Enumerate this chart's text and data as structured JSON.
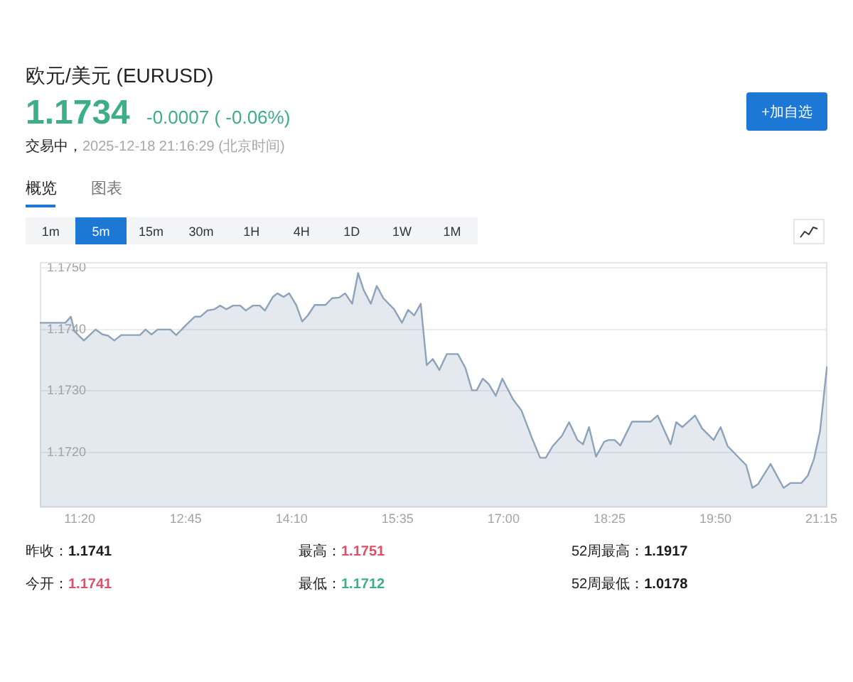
{
  "chart_data": {
    "type": "area",
    "title": "欧元/美元 (EURUSD)",
    "annotations": [
      "1.1734",
      "-0.0007 ( -0.06%)",
      "交易中，",
      "2025-12-18 21:16:29 (北京时间)",
      "+加自选",
      "概览",
      "图表",
      "1m",
      "5m",
      "15m",
      "30m",
      "1H",
      "4H",
      "1D",
      "1W",
      "1M",
      "昨收：",
      "1.1741",
      "最高：",
      "1.1751",
      "52周最高：",
      "1.1917",
      "今开：",
      "1.1741",
      "最低：",
      "1.1712",
      "52周最低：",
      "1.0178"
    ],
    "x": [
      10.8,
      11.141,
      11.215,
      11.264,
      11.389,
      11.545,
      11.638,
      11.713,
      11.795,
      11.889,
      12.138,
      12.213,
      12.293,
      12.375,
      12.544,
      12.624,
      12.761,
      12.873,
      12.948,
      13.041,
      13.135,
      13.21,
      13.292,
      13.386,
      13.479,
      13.554,
      13.648,
      13.741,
      13.809,
      13.915,
      13.977,
      14.059,
      14.134,
      14.228,
      14.308,
      14.383,
      14.476,
      14.62,
      14.707,
      14.8,
      14.882,
      14.976,
      15.056,
      15.131,
      15.225,
      15.305,
      15.393,
      15.537,
      15.642,
      15.724,
      15.805,
      15.893,
      15.973,
      16.054,
      16.142,
      16.241,
      16.39,
      16.491,
      16.578,
      16.641,
      16.722,
      16.802,
      16.896,
      16.984,
      17.128,
      17.24,
      17.377,
      17.489,
      17.564,
      17.657,
      17.782,
      17.876,
      17.988,
      18.063,
      18.143,
      18.237,
      18.344,
      18.405,
      18.486,
      18.561,
      18.718,
      18.967,
      19.06,
      19.234,
      19.309,
      19.391,
      19.56,
      19.653,
      19.809,
      19.902,
      19.996,
      20.244,
      20.327,
      20.402,
      20.57,
      20.744,
      20.838,
      20.982,
      21.068,
      21.15,
      21.231,
      21.324
    ],
    "values": [
      1.17411,
      1.17411,
      1.17421,
      1.17397,
      1.17382,
      1.174,
      1.17392,
      1.1739,
      1.17382,
      1.17391,
      1.17391,
      1.174,
      1.17392,
      1.174,
      1.174,
      1.17391,
      1.17408,
      1.17421,
      1.17421,
      1.17431,
      1.17433,
      1.17439,
      1.17433,
      1.17439,
      1.17439,
      1.17431,
      1.17439,
      1.17439,
      1.17431,
      1.17453,
      1.17459,
      1.17453,
      1.17459,
      1.1744,
      1.17413,
      1.17423,
      1.1744,
      1.1744,
      1.17451,
      1.17452,
      1.17459,
      1.17442,
      1.17492,
      1.17464,
      1.17442,
      1.17471,
      1.17451,
      1.17433,
      1.17411,
      1.17432,
      1.17423,
      1.17442,
      1.17342,
      1.17352,
      1.17334,
      1.1736,
      1.1736,
      1.17337,
      1.17301,
      1.17301,
      1.1732,
      1.17311,
      1.17292,
      1.1732,
      1.17286,
      1.17268,
      1.17224,
      1.17191,
      1.17191,
      1.1721,
      1.17227,
      1.17249,
      1.1722,
      1.17213,
      1.17241,
      1.17193,
      1.17217,
      1.1722,
      1.1722,
      1.17211,
      1.1725,
      1.1725,
      1.1726,
      1.17213,
      1.17249,
      1.17241,
      1.1726,
      1.17239,
      1.1722,
      1.17241,
      1.1721,
      1.17179,
      1.17142,
      1.17148,
      1.17181,
      1.17142,
      1.1715,
      1.1715,
      1.17162,
      1.17189,
      1.17234,
      1.1734
    ],
    "color": "#8ca3ba",
    "xlim": [
      10.8,
      21.33
    ],
    "ylim": [
      1.1711,
      1.1751
    ],
    "xticks": [
      {
        "value": 11.333,
        "label": "11:20"
      },
      {
        "value": 12.75,
        "label": "12:45"
      },
      {
        "value": 14.167,
        "label": "14:10"
      },
      {
        "value": 15.583,
        "label": "15:35"
      },
      {
        "value": 17,
        "label": "17:00"
      },
      {
        "value": 18.417,
        "label": "18:25"
      },
      {
        "value": 19.833,
        "label": "19:50"
      },
      {
        "value": 21.25,
        "label": "21:15"
      }
    ],
    "yticks": [
      {
        "value": 1.172,
        "label": "1.1720"
      },
      {
        "value": 1.173,
        "label": "1.1730"
      },
      {
        "value": 1.174,
        "label": "1.1740"
      },
      {
        "value": 1.175,
        "label": "1.1750"
      }
    ],
    "grid": "y",
    "marker": "none",
    "line_style": "solid"
  }
}
